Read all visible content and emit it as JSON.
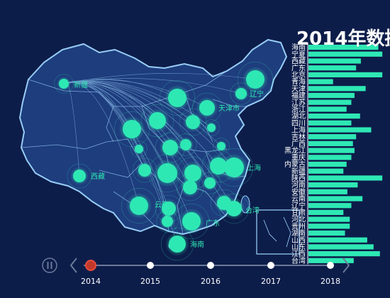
{
  "title": "2014年数据",
  "colors": {
    "background": "#0d1d4a",
    "map_fill": "#1f3f80",
    "map_border": "#9fd7ff",
    "accent": "#2ee8b4",
    "timeline_active": "#c0392b"
  },
  "timeline": {
    "years": [
      "2014",
      "2015",
      "2016",
      "2017",
      "2018"
    ],
    "current": "2014",
    "controls": [
      "play-icon",
      "prev-icon",
      "next-icon"
    ]
  },
  "map_labels": [
    "新疆",
    "西藏",
    "上海",
    "台湾",
    "海南",
    "天津市",
    "辽宁",
    "云南",
    "广东"
  ],
  "chart_data": {
    "type": "bar",
    "orientation": "horizontal",
    "title": "2014年数据",
    "categories": [
      "海南",
      "宁夏",
      "西藏",
      "广东",
      "北京",
      "青海",
      "天津",
      "福建",
      "江苏",
      "浙江",
      "湖北",
      "四川",
      "上海",
      "吉林",
      "广西",
      "黑龙江",
      "重庆",
      "内蒙古",
      "新疆",
      "陕西",
      "河南",
      "安徽",
      "云南",
      "辽宁",
      "甘肃",
      "河北",
      "贵州",
      "湖南",
      "山西",
      "山东",
      "江西",
      "台湾"
    ],
    "values": [
      0.88,
      0.93,
      0.66,
      0.6,
      0.93,
      0.31,
      0.72,
      0.58,
      0.54,
      0.48,
      0.65,
      0.54,
      0.79,
      0.6,
      0.56,
      0.58,
      0.54,
      0.48,
      0.44,
      0.93,
      0.62,
      0.49,
      0.68,
      0.54,
      0.44,
      0.52,
      0.52,
      0.46,
      0.74,
      0.82,
      0.9,
      0.57
    ]
  }
}
